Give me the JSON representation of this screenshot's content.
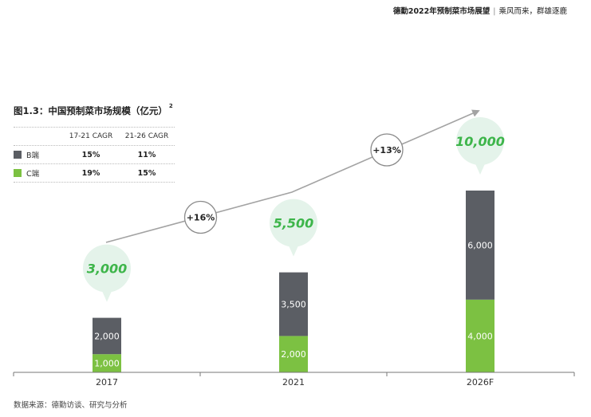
{
  "header": {
    "title": "德勤2022年预制菜市场展望",
    "subtitle": "乘风而来，群雄逐鹿"
  },
  "figure_title": "图1.3：中国预制菜市场规模（亿元）",
  "figure_title_note": "2",
  "table": {
    "columns": [
      "",
      "17-21 CAGR",
      "21-26 CAGR"
    ],
    "rows": [
      {
        "label": "B端",
        "color": "#5b5e64",
        "values": [
          "15%",
          "11%"
        ]
      },
      {
        "label": "C端",
        "color": "#7cc142",
        "values": [
          "19%",
          "15%"
        ]
      }
    ]
  },
  "source": "数据来源：德勤访谈、研究与分析",
  "colors": {
    "b_segment": "#5b5e64",
    "c_segment": "#7cc142",
    "total_label": "#3db54a",
    "bubble": "#e4f3ea",
    "arrow": "#a3a3a3"
  },
  "chart_data": {
    "type": "bar",
    "stacked": true,
    "categories": [
      "2017",
      "2021",
      "2026F"
    ],
    "series": [
      {
        "name": "C端",
        "values": [
          1000,
          2000,
          4000
        ],
        "labels": [
          "1,000",
          "2,000",
          "4,000"
        ]
      },
      {
        "name": "B端",
        "values": [
          2000,
          3500,
          6000
        ],
        "labels": [
          "2,000",
          "3,500",
          "6,000"
        ]
      }
    ],
    "totals": [
      3000,
      5500,
      10000
    ],
    "total_labels": [
      "3,000",
      "5,500",
      "10,000"
    ],
    "growth_labels": [
      "+16%",
      "+13%"
    ],
    "ylim": [
      0,
      10000
    ]
  }
}
